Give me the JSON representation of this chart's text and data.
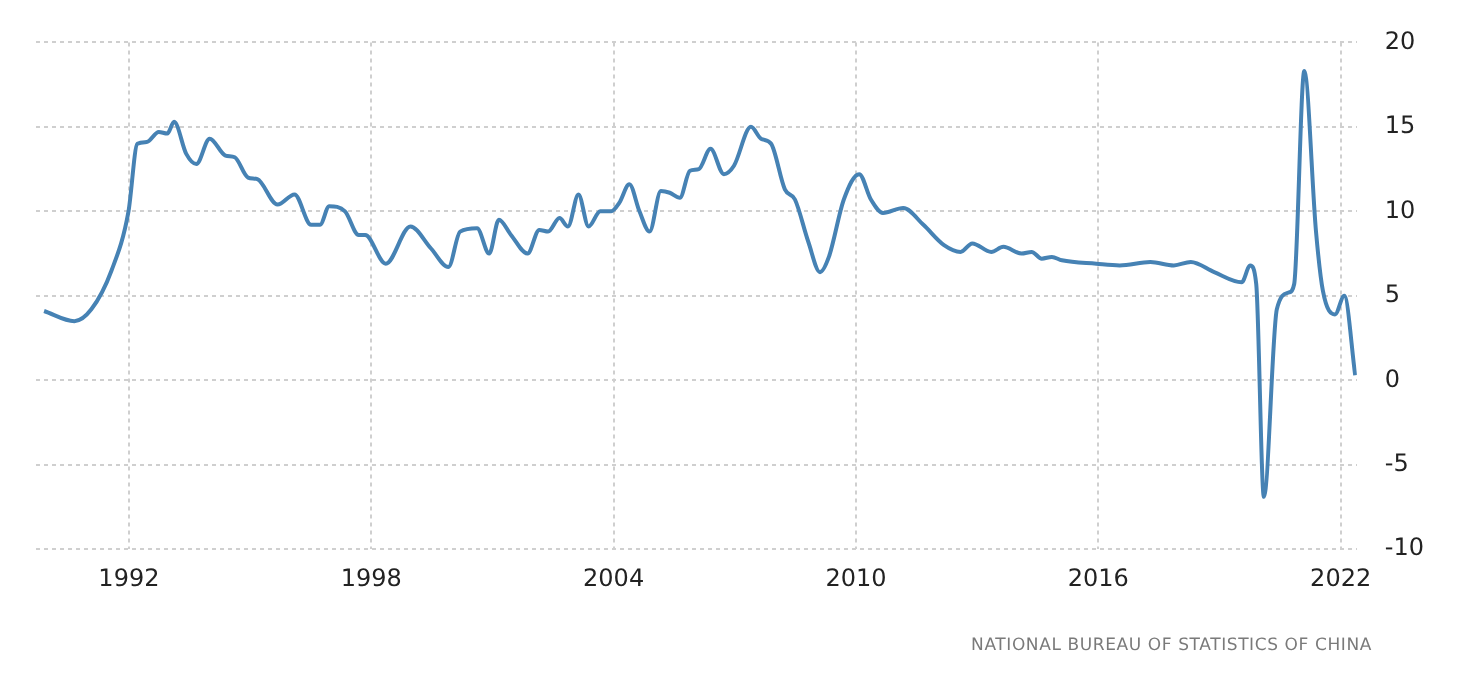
{
  "chart_data": {
    "type": "line",
    "xlim": [
      1989.7,
      2022.4
    ],
    "ylim": [
      -10,
      20
    ],
    "xticks": [
      1992,
      1998,
      2004,
      2010,
      2016,
      2022
    ],
    "yticks": [
      -10,
      -5,
      0,
      5,
      10,
      15,
      20
    ],
    "grid": true,
    "legend": false,
    "annotations": [
      "NATIONAL BUREAU OF STATISTICS OF CHINA"
    ],
    "series": [
      {
        "color": "#4682b4",
        "x": [
          1989.9,
          1990.65,
          1991.07,
          1991.57,
          1991.99,
          1992.21,
          1992.44,
          1992.74,
          1992.95,
          1993.12,
          1993.42,
          1993.67,
          1994.0,
          1994.39,
          1994.62,
          1994.95,
          1995.18,
          1995.68,
          1996.1,
          1996.51,
          1996.73,
          1996.96,
          1997.35,
          1997.69,
          1997.85,
          1998.36,
          1998.97,
          1999.48,
          1999.91,
          2000.2,
          2000.62,
          2000.92,
          2001.16,
          2001.46,
          2001.87,
          2002.16,
          2002.38,
          2002.66,
          2002.87,
          2003.13,
          2003.38,
          2003.67,
          2003.94,
          2004.14,
          2004.39,
          2004.64,
          2004.89,
          2005.17,
          2005.39,
          2005.64,
          2005.89,
          2006.11,
          2006.4,
          2006.73,
          2006.98,
          2007.4,
          2007.65,
          2007.9,
          2008.24,
          2008.49,
          2008.82,
          2009.11,
          2009.33,
          2009.7,
          2010.08,
          2010.37,
          2010.67,
          2011.17,
          2011.67,
          2012.18,
          2012.59,
          2012.88,
          2013.35,
          2013.65,
          2014.1,
          2014.35,
          2014.6,
          2014.85,
          2015.1,
          2015.95,
          2016.53,
          2017.29,
          2017.87,
          2018.29,
          2018.87,
          2019.55,
          2019.76,
          2019.91,
          2020.1,
          2020.42,
          2020.72,
          2020.85,
          2021.1,
          2021.39,
          2021.56,
          2021.86,
          2022.09,
          2022.36
        ],
        "values": [
          4.1,
          3.5,
          4.2,
          6.5,
          10.0,
          14.0,
          14.1,
          14.7,
          14.6,
          15.3,
          13.4,
          12.8,
          14.3,
          13.3,
          13.2,
          12.0,
          11.9,
          10.4,
          11.0,
          9.2,
          9.2,
          10.3,
          10.0,
          8.6,
          8.6,
          6.9,
          9.1,
          7.8,
          6.7,
          8.8,
          9.0,
          7.5,
          9.5,
          8.6,
          7.5,
          8.9,
          8.8,
          9.6,
          9.1,
          11.0,
          9.1,
          10.0,
          10.0,
          10.5,
          11.6,
          10.0,
          8.8,
          11.2,
          11.1,
          10.8,
          12.4,
          12.5,
          13.7,
          12.2,
          12.7,
          15.0,
          14.3,
          14.0,
          11.3,
          10.7,
          8.2,
          6.4,
          7.3,
          10.7,
          12.2,
          10.7,
          9.9,
          10.2,
          9.2,
          8.0,
          7.6,
          8.1,
          7.6,
          7.9,
          7.5,
          7.6,
          7.2,
          7.3,
          7.1,
          6.9,
          6.8,
          7.0,
          6.8,
          7.0,
          6.4,
          5.8,
          6.8,
          5.7,
          -6.9,
          4.2,
          5.2,
          5.7,
          18.3,
          8.8,
          5.3,
          3.9,
          5.0,
          0.3
        ]
      }
    ]
  }
}
